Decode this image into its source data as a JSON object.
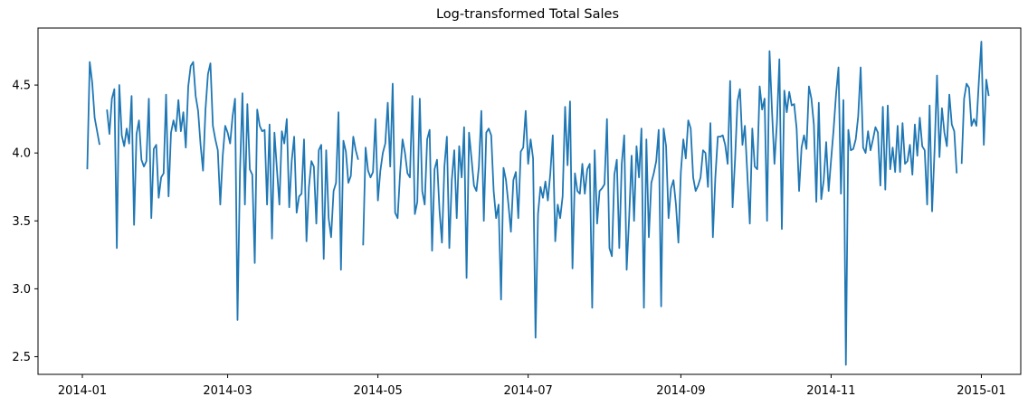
{
  "chart_data": {
    "type": "line",
    "title": "Log-transformed Total Sales",
    "xlabel": "",
    "ylabel": "",
    "grid": false,
    "legend": "none",
    "line_color": "#1f77b4",
    "x_range": [
      "2013-12-14",
      "2015-01-17"
    ],
    "ylim": [
      2.37,
      4.92
    ],
    "x_ticks": [
      {
        "date": "2014-01-01",
        "label": "2014-01"
      },
      {
        "date": "2014-03-01",
        "label": "2014-03"
      },
      {
        "date": "2014-05-01",
        "label": "2014-05"
      },
      {
        "date": "2014-07-01",
        "label": "2014-07"
      },
      {
        "date": "2014-09-01",
        "label": "2014-09"
      },
      {
        "date": "2014-11-01",
        "label": "2014-11"
      },
      {
        "date": "2015-01-01",
        "label": "2015-01"
      }
    ],
    "y_ticks": [
      {
        "value": 2.5,
        "label": "2.5"
      },
      {
        "value": 3.0,
        "label": "3.0"
      },
      {
        "value": 3.5,
        "label": "3.5"
      },
      {
        "value": 4.0,
        "label": "4.0"
      },
      {
        "value": 4.5,
        "label": "4.5"
      }
    ],
    "series": [
      {
        "start_date": "2014-01-03",
        "values": [
          3.88,
          4.67,
          4.52,
          4.26,
          4.16,
          4.06,
          null,
          null,
          4.32,
          4.14,
          4.4,
          4.47,
          3.3,
          4.5,
          4.13,
          4.05,
          4.18,
          4.07,
          4.42,
          3.47,
          4.14,
          4.24,
          3.95,
          3.9,
          3.94,
          4.4,
          3.52,
          4.03,
          4.06,
          3.67,
          3.82,
          3.85,
          4.43,
          3.68,
          4.15,
          4.24,
          4.16,
          4.39,
          4.16,
          4.3,
          4.04,
          4.49,
          4.64,
          4.67,
          4.42,
          4.31,
          4.06,
          3.87,
          4.32,
          4.58,
          4.66,
          4.2,
          4.1,
          4.02,
          3.62,
          3.98,
          4.2,
          4.15,
          4.07,
          4.27,
          4.4,
          2.77,
          3.86,
          4.44,
          3.62,
          4.36,
          3.88,
          3.84,
          3.19,
          4.32,
          4.2,
          4.16,
          4.17,
          3.62,
          4.21,
          3.37,
          4.15,
          3.88,
          3.62,
          4.16,
          4.07,
          4.25,
          3.6,
          3.94,
          4.12,
          3.56,
          3.68,
          3.7,
          4.1,
          3.35,
          3.75,
          3.94,
          3.9,
          3.48,
          4.02,
          4.06,
          3.22,
          4.02,
          3.52,
          3.38,
          3.72,
          3.78,
          4.3,
          3.14,
          4.09,
          4.01,
          3.78,
          3.83,
          4.12,
          4.02,
          3.95,
          null,
          3.32,
          4.04,
          3.87,
          3.82,
          3.86,
          4.25,
          3.65,
          3.87,
          4.0,
          4.07,
          4.37,
          3.9,
          4.51,
          3.56,
          3.52,
          3.85,
          4.1,
          4.0,
          3.85,
          3.82,
          4.42,
          3.55,
          3.64,
          4.4,
          3.72,
          3.62,
          4.1,
          4.17,
          3.28,
          3.88,
          3.95,
          3.58,
          3.34,
          3.9,
          4.12,
          3.3,
          3.8,
          4.02,
          3.52,
          4.05,
          3.82,
          4.19,
          3.08,
          4.15,
          3.96,
          3.76,
          3.72,
          3.9,
          4.31,
          3.5,
          4.15,
          4.18,
          4.13,
          3.72,
          3.52,
          3.62,
          2.92,
          3.89,
          3.8,
          3.62,
          3.42,
          3.8,
          3.86,
          3.52,
          4.01,
          4.04,
          4.31,
          3.92,
          4.1,
          3.96,
          2.64,
          3.55,
          3.75,
          3.67,
          3.79,
          3.65,
          3.85,
          4.13,
          3.35,
          3.62,
          3.52,
          3.68,
          4.34,
          3.91,
          4.38,
          3.15,
          3.85,
          3.72,
          3.7,
          3.92,
          3.7,
          3.88,
          3.92,
          2.86,
          4.02,
          3.48,
          3.72,
          3.74,
          3.77,
          4.25,
          3.3,
          3.24,
          3.84,
          3.95,
          3.3,
          3.92,
          4.13,
          3.14,
          3.52,
          3.98,
          3.5,
          4.05,
          3.82,
          4.18,
          2.86,
          4.1,
          3.38,
          3.78,
          3.85,
          3.94,
          4.17,
          2.87,
          4.18,
          4.05,
          3.52,
          3.74,
          3.8,
          3.62,
          3.34,
          3.86,
          4.1,
          3.96,
          4.24,
          4.18,
          3.82,
          3.72,
          3.76,
          3.82,
          4.02,
          4.0,
          3.75,
          4.22,
          3.38,
          3.82,
          4.12,
          4.12,
          4.13,
          4.06,
          3.92,
          4.53,
          3.6,
          3.95,
          4.38,
          4.47,
          4.06,
          4.2,
          3.84,
          3.48,
          4.18,
          3.9,
          3.88,
          4.49,
          4.32,
          4.4,
          3.5,
          4.75,
          4.31,
          3.92,
          4.22,
          4.69,
          3.44,
          4.46,
          4.3,
          4.45,
          4.35,
          4.36,
          4.18,
          3.72,
          4.04,
          4.13,
          4.03,
          4.49,
          4.4,
          4.21,
          3.64,
          4.37,
          3.66,
          3.8,
          4.08,
          3.72,
          3.95,
          4.17,
          4.43,
          4.63,
          3.7,
          4.39,
          2.44,
          4.17,
          4.02,
          4.03,
          4.1,
          4.27,
          4.63,
          4.04,
          4.0,
          4.16,
          4.02,
          4.1,
          4.19,
          4.15,
          3.76,
          4.34,
          3.73,
          4.35,
          3.88,
          4.04,
          3.86,
          4.2,
          3.86,
          4.22,
          3.92,
          3.94,
          4.06,
          3.84,
          4.21,
          3.98,
          4.26,
          4.05,
          4.02,
          3.62,
          4.35,
          3.57,
          4.02,
          4.57,
          3.97,
          4.33,
          4.15,
          4.05,
          4.43,
          4.21,
          4.16,
          3.85,
          null,
          3.92,
          4.4,
          4.51,
          4.48,
          4.2,
          4.25,
          4.2,
          4.53,
          4.82,
          4.06,
          4.54,
          4.42
        ]
      }
    ]
  }
}
